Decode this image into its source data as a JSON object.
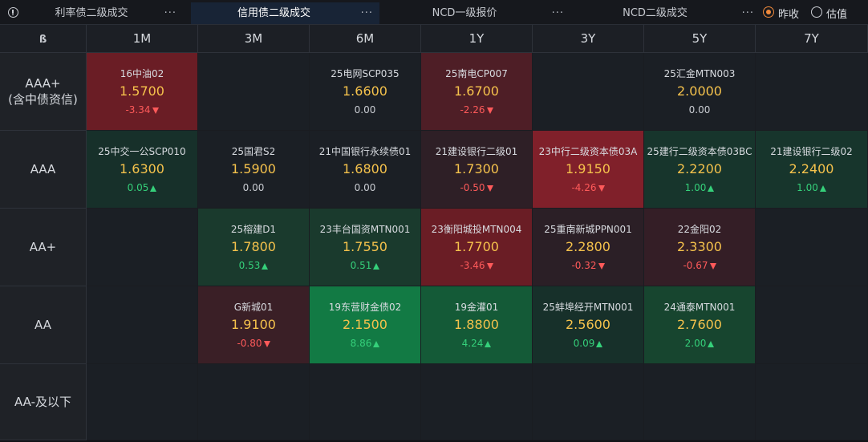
{
  "tabs": [
    {
      "label": "利率债二级成交",
      "more": "···",
      "active": false
    },
    {
      "label": "信用债二级成交",
      "more": "···",
      "active": true
    },
    {
      "label": "NCD一级报价",
      "more": "···",
      "active": false
    },
    {
      "label": "NCD二级成交",
      "more": "···",
      "active": false
    }
  ],
  "options": [
    {
      "label": "昨收",
      "selected": true
    },
    {
      "label": "估值",
      "selected": false
    }
  ],
  "corner_icon": "ß",
  "columns": [
    "1M",
    "3M",
    "6M",
    "1Y",
    "3Y",
    "5Y",
    "7Y"
  ],
  "rows": [
    {
      "label_lines": [
        "AAA+",
        "(含中债资信)"
      ],
      "cells": [
        {
          "name": "16中油02",
          "rate": "1.5700",
          "change": "-3.34",
          "dir": "down",
          "color": "#6a1d25"
        },
        null,
        {
          "name": "25电网SCP035",
          "rate": "1.6600",
          "change": "0.00",
          "dir": "flat",
          "color": "#1b1f25"
        },
        {
          "name": "25南电CP007",
          "rate": "1.6700",
          "change": "-2.26",
          "dir": "down",
          "color": "#4e1e26"
        },
        null,
        {
          "name": "25汇金MTN003",
          "rate": "2.0000",
          "change": "0.00",
          "dir": "flat",
          "color": "#1b1f25"
        },
        null
      ]
    },
    {
      "label_lines": [
        "AAA"
      ],
      "cells": [
        {
          "name": "25中交一公SCP010",
          "rate": "1.6300",
          "change": "0.05",
          "dir": "up",
          "color": "#17302a"
        },
        {
          "name": "25国君S2",
          "rate": "1.5900",
          "change": "0.00",
          "dir": "flat",
          "color": "#1b1f25"
        },
        {
          "name": "21中国银行永续债01",
          "rate": "1.6800",
          "change": "0.00",
          "dir": "flat",
          "color": "#1b1f25"
        },
        {
          "name": "21建设银行二级01",
          "rate": "1.7300",
          "change": "-0.50",
          "dir": "down",
          "color": "#2e1f26"
        },
        {
          "name": "23中行二级资本债03A",
          "rate": "1.9150",
          "change": "-4.26",
          "dir": "down",
          "color": "#80202a"
        },
        {
          "name": "25建行二级资本债03BC",
          "rate": "2.2200",
          "change": "1.00",
          "dir": "up",
          "color": "#17352c"
        },
        {
          "name": "21建设银行二级02",
          "rate": "2.2400",
          "change": "1.00",
          "dir": "up",
          "color": "#17352c"
        }
      ]
    },
    {
      "label_lines": [
        "AA+"
      ],
      "cells": [
        null,
        {
          "name": "25榕建D1",
          "rate": "1.7800",
          "change": "0.53",
          "dir": "up",
          "color": "#1a3a2d"
        },
        {
          "name": "23丰台国资MTN001",
          "rate": "1.7550",
          "change": "0.51",
          "dir": "up",
          "color": "#1a3a2d"
        },
        {
          "name": "23衡阳城投MTN004",
          "rate": "1.7700",
          "change": "-3.46",
          "dir": "down",
          "color": "#6a1d25"
        },
        {
          "name": "25重南新城PPN001",
          "rate": "2.2800",
          "change": "-0.32",
          "dir": "down",
          "color": "#2b1f26"
        },
        {
          "name": "22金阳02",
          "rate": "2.3300",
          "change": "-0.67",
          "dir": "down",
          "color": "#341e26"
        },
        null
      ]
    },
    {
      "label_lines": [
        "AA"
      ],
      "cells": [
        null,
        {
          "name": "G新城01",
          "rate": "1.9100",
          "change": "-0.80",
          "dir": "down",
          "color": "#3a1f26"
        },
        {
          "name": "19东营财金债02",
          "rate": "2.1500",
          "change": "8.86",
          "dir": "up",
          "color": "#127a44"
        },
        {
          "name": "19金灌01",
          "rate": "1.8800",
          "change": "4.24",
          "dir": "up",
          "color": "#145a37"
        },
        {
          "name": "25蚌埠经开MTN001",
          "rate": "2.5600",
          "change": "0.09",
          "dir": "up",
          "color": "#17302a"
        },
        {
          "name": "24通泰MTN001",
          "rate": "2.7600",
          "change": "2.00",
          "dir": "up",
          "color": "#17452f"
        },
        null
      ]
    },
    {
      "label_lines": [
        "AA-及以下"
      ],
      "cells": [
        null,
        null,
        null,
        null,
        null,
        null,
        null
      ]
    }
  ],
  "empty_cell_color": "#1b1f25"
}
